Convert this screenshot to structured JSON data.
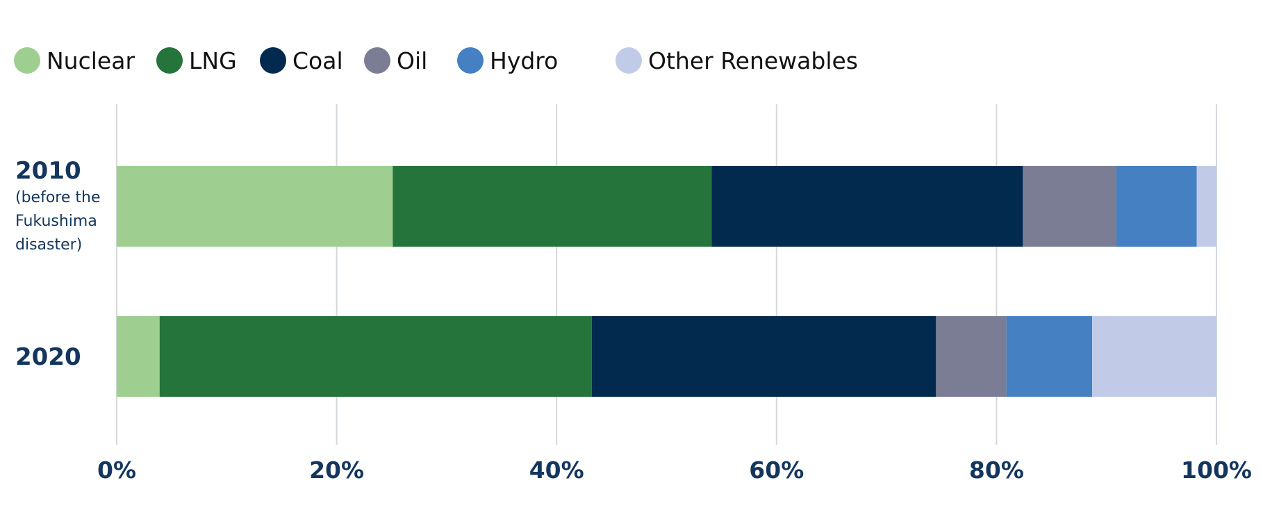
{
  "chart_data": {
    "type": "bar",
    "orientation": "horizontal",
    "stacked": true,
    "normalized": true,
    "title": "",
    "xlabel": "",
    "ylabel": "",
    "xlim": [
      0,
      100
    ],
    "x_ticks": [
      "0%",
      "20%",
      "40%",
      "60%",
      "80%",
      "100%"
    ],
    "grid": true,
    "legend_position": "top-left",
    "categories": [
      {
        "label": "2010",
        "sublabel": [
          "(before the",
          "Fukushima",
          "disaster)"
        ]
      },
      {
        "label": "2020",
        "sublabel": []
      }
    ],
    "series": [
      {
        "name": "Nuclear",
        "color": "#9ecf90",
        "values": [
          25.1,
          3.9
        ]
      },
      {
        "name": "LNG",
        "color": "#24743b",
        "values": [
          29.0,
          39.3
        ]
      },
      {
        "name": "Coal",
        "color": "#022a4f",
        "values": [
          28.3,
          31.3
        ]
      },
      {
        "name": "Oil",
        "color": "#7a7d93",
        "values": [
          8.5,
          6.4
        ]
      },
      {
        "name": "Hydro",
        "color": "#4580c2",
        "values": [
          7.3,
          7.8
        ]
      },
      {
        "name": "Other Renewables",
        "color": "#c1cbe8",
        "values": [
          1.8,
          11.3
        ]
      }
    ]
  }
}
